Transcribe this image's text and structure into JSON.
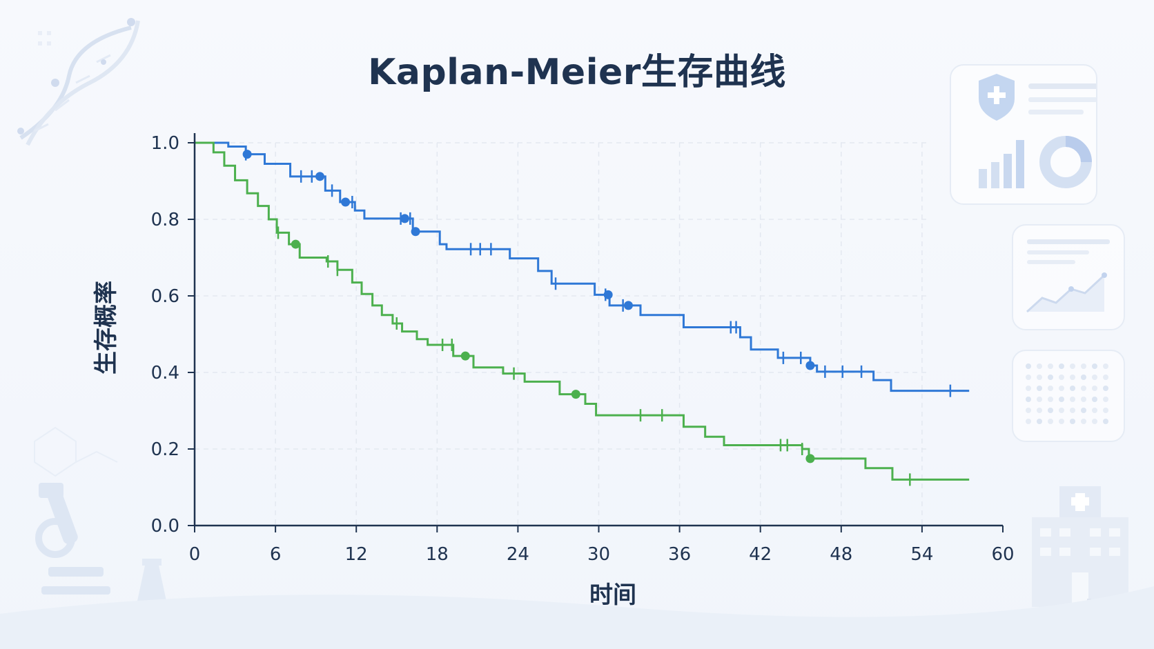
{
  "chart_data": {
    "type": "line",
    "title": "Kaplan-Meier生存曲线",
    "xlabel": "时间",
    "ylabel": "生存概率",
    "xlim": [
      0,
      60
    ],
    "ylim": [
      0,
      1.0
    ],
    "x_ticks": [
      "0",
      "6",
      "12",
      "18",
      "24",
      "30",
      "36",
      "42",
      "48",
      "54",
      "60"
    ],
    "y_ticks": [
      "0.0",
      "0.2",
      "0.4",
      "0.6",
      "0.8",
      "1.0"
    ],
    "grid": true,
    "legend": "none",
    "series": [
      {
        "color": "#2f78d6",
        "steps": [
          [
            0,
            1.0
          ],
          [
            2.5,
            0.99
          ],
          [
            3.8,
            0.97
          ],
          [
            5.2,
            0.945
          ],
          [
            7.1,
            0.912
          ],
          [
            9.7,
            0.875
          ],
          [
            10.8,
            0.845
          ],
          [
            11.9,
            0.823
          ],
          [
            12.6,
            0.802
          ],
          [
            16.2,
            0.768
          ],
          [
            18.2,
            0.735
          ],
          [
            18.7,
            0.722
          ],
          [
            23.4,
            0.698
          ],
          [
            25.5,
            0.665
          ],
          [
            26.5,
            0.632
          ],
          [
            29.7,
            0.603
          ],
          [
            30.8,
            0.575
          ],
          [
            33.1,
            0.55
          ],
          [
            36.3,
            0.518
          ],
          [
            40.5,
            0.492
          ],
          [
            41.3,
            0.46
          ],
          [
            43.3,
            0.438
          ],
          [
            45.7,
            0.418
          ],
          [
            46.2,
            0.402
          ],
          [
            50.4,
            0.38
          ],
          [
            51.7,
            0.352
          ],
          [
            57.5,
            0.352
          ]
        ],
        "censor_ticks": [
          3.8,
          7.9,
          8.7,
          10.2,
          11.7,
          15.3,
          16.0,
          20.5,
          21.2,
          22.0,
          26.8,
          30.5,
          31.8,
          39.8,
          40.2,
          43.7,
          45.0,
          46.8,
          48.1,
          49.5,
          56.1
        ],
        "censor_dots": [
          3.9,
          9.3,
          11.2,
          15.6,
          16.4,
          30.7,
          32.2,
          45.7
        ]
      },
      {
        "color": "#4cb04e",
        "steps": [
          [
            0,
            1.0
          ],
          [
            1.4,
            0.975
          ],
          [
            2.2,
            0.94
          ],
          [
            3.0,
            0.902
          ],
          [
            3.9,
            0.868
          ],
          [
            4.7,
            0.835
          ],
          [
            5.5,
            0.8
          ],
          [
            6.1,
            0.765
          ],
          [
            7.0,
            0.735
          ],
          [
            7.8,
            0.7
          ],
          [
            9.8,
            0.69
          ],
          [
            10.6,
            0.668
          ],
          [
            11.7,
            0.635
          ],
          [
            12.4,
            0.605
          ],
          [
            13.2,
            0.575
          ],
          [
            13.9,
            0.55
          ],
          [
            14.7,
            0.528
          ],
          [
            15.4,
            0.507
          ],
          [
            16.5,
            0.487
          ],
          [
            17.3,
            0.472
          ],
          [
            19.2,
            0.443
          ],
          [
            20.7,
            0.413
          ],
          [
            22.9,
            0.397
          ],
          [
            24.5,
            0.376
          ],
          [
            27.1,
            0.343
          ],
          [
            29.0,
            0.318
          ],
          [
            29.8,
            0.288
          ],
          [
            36.3,
            0.258
          ],
          [
            37.9,
            0.232
          ],
          [
            39.3,
            0.21
          ],
          [
            45.1,
            0.2
          ],
          [
            45.6,
            0.175
          ],
          [
            49.8,
            0.15
          ],
          [
            51.8,
            0.12
          ],
          [
            57.5,
            0.12
          ]
        ],
        "censor_ticks": [
          6.2,
          9.9,
          10.6,
          15.0,
          18.4,
          19.1,
          23.7,
          33.1,
          34.7,
          43.5,
          44.0,
          45.1,
          53.1
        ],
        "censor_dots": [
          7.5,
          20.1,
          28.3,
          45.7
        ]
      }
    ]
  }
}
